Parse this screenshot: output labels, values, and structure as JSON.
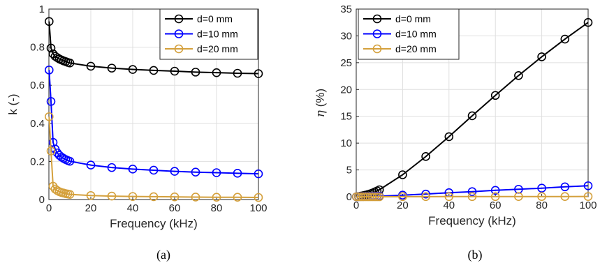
{
  "chart_data": [
    {
      "type": "line",
      "panel_label": "(a)",
      "xlabel": "Frequency (kHz)",
      "ylabel": "k (-)",
      "xlim": [
        0,
        100
      ],
      "ylim": [
        0,
        1
      ],
      "xticks": [
        0,
        20,
        40,
        60,
        80,
        100
      ],
      "yticks": [
        0,
        0.2,
        0.4,
        0.6,
        0.8,
        1
      ],
      "ytick_labels": [
        "0",
        "0.2",
        "0.4",
        "0.6",
        "0.8",
        "1"
      ],
      "grid": true,
      "legend_position": "top-right",
      "x": [
        0.1,
        1,
        2,
        3,
        4,
        5,
        6,
        7,
        8,
        9,
        10,
        20,
        30,
        40,
        50,
        60,
        70,
        80,
        90,
        100
      ],
      "series": [
        {
          "name": "d=0 mm",
          "color": "#000000",
          "marker": "circle",
          "values": [
            0.935,
            0.795,
            0.765,
            0.752,
            0.745,
            0.738,
            0.733,
            0.728,
            0.724,
            0.72,
            0.717,
            0.7,
            0.69,
            0.683,
            0.678,
            0.674,
            0.669,
            0.666,
            0.663,
            0.661
          ]
        },
        {
          "name": "d=10 mm",
          "color": "#0000ff",
          "marker": "circle",
          "values": [
            0.68,
            0.515,
            0.3,
            0.265,
            0.245,
            0.232,
            0.223,
            0.216,
            0.21,
            0.205,
            0.201,
            0.181,
            0.168,
            0.16,
            0.154,
            0.148,
            0.144,
            0.141,
            0.138,
            0.135
          ]
        },
        {
          "name": "d=20 mm",
          "color": "#d4a03c",
          "marker": "circle",
          "values": [
            0.435,
            0.255,
            0.07,
            0.055,
            0.047,
            0.041,
            0.037,
            0.034,
            0.031,
            0.029,
            0.027,
            0.021,
            0.018,
            0.016,
            0.015,
            0.014,
            0.013,
            0.012,
            0.012,
            0.011
          ]
        }
      ]
    },
    {
      "type": "line",
      "panel_label": "(b)",
      "xlabel": "Frequency (kHz)",
      "ylabel_symbol": "η",
      "ylabel_unit": " (%)",
      "xlim": [
        0,
        100
      ],
      "ylim": [
        0,
        35
      ],
      "xticks": [
        0,
        20,
        40,
        60,
        80,
        100
      ],
      "yticks": [
        0,
        5,
        10,
        15,
        20,
        25,
        30,
        35
      ],
      "ytick_labels": [
        "0",
        "5",
        "10",
        "15",
        "20",
        "25",
        "30",
        "35"
      ],
      "grid": true,
      "legend_position": "top-left",
      "x": [
        0.1,
        1,
        2,
        3,
        4,
        5,
        6,
        7,
        8,
        9,
        10,
        20,
        30,
        40,
        50,
        60,
        70,
        80,
        90,
        100
      ],
      "series": [
        {
          "name": "d=0 mm",
          "color": "#000000",
          "marker": "circle",
          "values": [
            0,
            0.05,
            0.12,
            0.2,
            0.3,
            0.42,
            0.55,
            0.7,
            0.88,
            1.08,
            1.3,
            4.1,
            7.5,
            11.2,
            15.1,
            18.9,
            22.6,
            26.1,
            29.4,
            32.5
          ]
        },
        {
          "name": "d=10 mm",
          "color": "#0000ff",
          "marker": "circle",
          "values": [
            0,
            0.01,
            0.02,
            0.03,
            0.04,
            0.05,
            0.06,
            0.07,
            0.08,
            0.09,
            0.1,
            0.3,
            0.5,
            0.75,
            0.95,
            1.2,
            1.4,
            1.6,
            1.85,
            2.05
          ]
        },
        {
          "name": "d=20 mm",
          "color": "#d4a03c",
          "marker": "circle",
          "values": [
            0,
            0,
            0,
            0,
            0,
            0,
            0,
            0,
            0,
            0,
            0,
            0.02,
            0.02,
            0.03,
            0.03,
            0.03,
            0.04,
            0.04,
            0.04,
            0.05
          ]
        }
      ]
    }
  ]
}
